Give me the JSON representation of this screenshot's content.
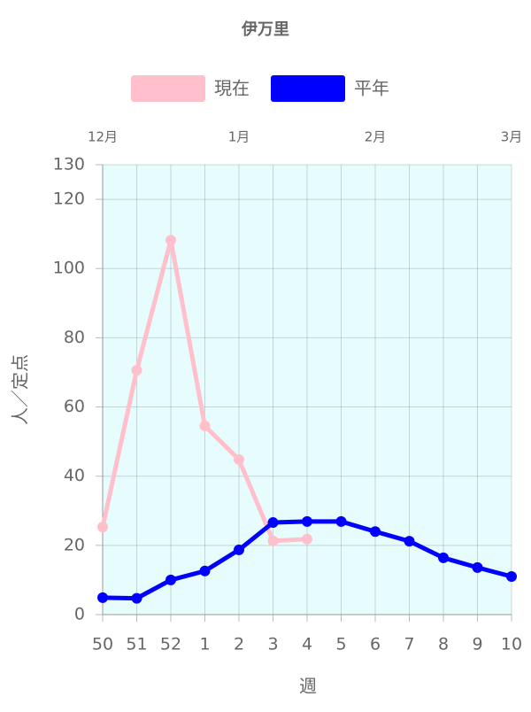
{
  "chart_data": {
    "type": "line",
    "title": "伊万里",
    "categories": [
      "50",
      "51",
      "52",
      "1",
      "2",
      "3",
      "4",
      "5",
      "6",
      "7",
      "8",
      "9",
      "10"
    ],
    "x2_categories": [
      "12月",
      null,
      null,
      null,
      "1月",
      null,
      null,
      null,
      "2月",
      null,
      null,
      null,
      "3月"
    ],
    "series": [
      {
        "name": "現在",
        "color": "#ffc0cb",
        "values": [
          25.3,
          70.6,
          108.2,
          54.5,
          44.8,
          21.3,
          21.8,
          null,
          null,
          null,
          null,
          null,
          null
        ]
      },
      {
        "name": "平年",
        "color": "#0000ff",
        "values": [
          4.9,
          4.7,
          10,
          12.6,
          18.7,
          26.6,
          26.9,
          26.9,
          24,
          21.2,
          16.4,
          13.6,
          11
        ]
      }
    ],
    "ylim": [
      0,
      130
    ],
    "yticks": [
      0,
      20,
      40,
      60,
      80,
      100,
      120,
      130
    ],
    "xlabel": "週",
    "ylabel": "人／定点",
    "grid": true,
    "legend": "top"
  }
}
